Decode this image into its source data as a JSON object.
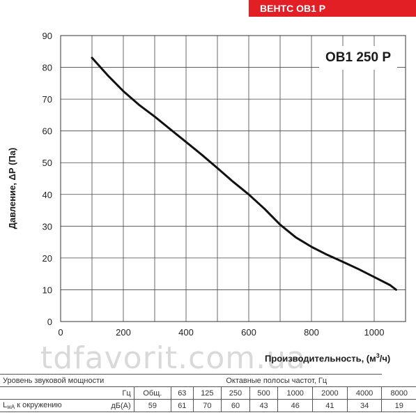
{
  "header": {
    "banner": "ВЕНТС ОВ1 Р"
  },
  "chart_data": {
    "type": "line",
    "model_label": "ОВ1 250 Р",
    "xlabel_main": "Производительность, (м",
    "xlabel_sup": "3",
    "xlabel_end": "/ч)",
    "ylabel": "Давление, ΔР (Па)",
    "xlim": [
      0,
      1100
    ],
    "ylim": [
      0,
      90
    ],
    "xticks": [
      0,
      200,
      400,
      600,
      800,
      1000
    ],
    "yticks": [
      0,
      10,
      20,
      30,
      40,
      50,
      60,
      70,
      80,
      90
    ],
    "grid": true,
    "series": [
      {
        "color": "#111111",
        "x": [
          100,
          150,
          200,
          250,
          300,
          350,
          400,
          450,
          500,
          550,
          600,
          650,
          700,
          750,
          800,
          850,
          900,
          950,
          1000,
          1050,
          1070
        ],
        "y": [
          83,
          77.5,
          72.5,
          68.2,
          64.5,
          60.5,
          56.5,
          52.5,
          48.3,
          44,
          40,
          35.5,
          30.5,
          26.5,
          23.5,
          21,
          18.8,
          16.5,
          14,
          11.5,
          10
        ]
      }
    ]
  },
  "watermark": "tdfavorit.com.ua",
  "sound_table": {
    "title_left": "Уровень звуковой мощности",
    "title_right": "Октавные полосы частот, Гц",
    "unit_hz": "Гц",
    "total_label": "Общ.",
    "freqs": [
      "63",
      "125",
      "250",
      "500",
      "1000",
      "2000",
      "4000",
      "8000"
    ],
    "row_label_main": "L",
    "row_label_sub": "wA",
    "row_label_rest": " к окружению",
    "unit_db": "дБ(А)",
    "total_value": "59",
    "values": [
      "61",
      "70",
      "60",
      "43",
      "46",
      "41",
      "34",
      "19"
    ]
  }
}
